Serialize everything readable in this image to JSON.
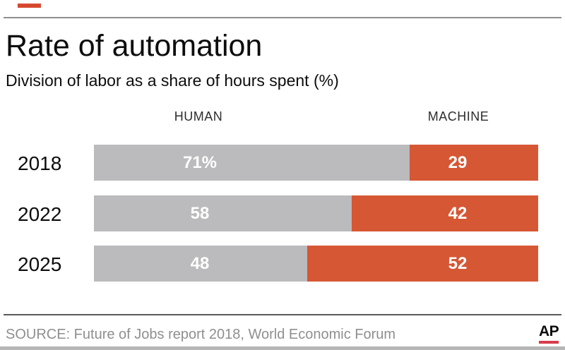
{
  "header": {
    "title": "Rate of automation",
    "subtitle": "Division of labor as a share of hours spent (%)"
  },
  "column_headers": {
    "human": "HUMAN",
    "machine": "MACHINE"
  },
  "chart_data": {
    "type": "bar",
    "subtype": "horizontal-stacked",
    "title": "Rate of automation",
    "subtitle": "Division of labor as a share of hours spent (%)",
    "categories": [
      "2018",
      "2022",
      "2025"
    ],
    "series": [
      {
        "name": "HUMAN",
        "color": "#bbbabc",
        "values": [
          71,
          58,
          48
        ],
        "labels": [
          "71%",
          "58",
          "48"
        ]
      },
      {
        "name": "MACHINE",
        "color": "#d65734",
        "values": [
          29,
          42,
          52
        ],
        "labels": [
          "29",
          "42",
          "52"
        ]
      }
    ],
    "xlim": [
      0,
      100
    ],
    "value_unit": "%",
    "grid": false,
    "legend_position": "top-as-column-headers",
    "label_text_color": "#ffffff"
  },
  "footer": {
    "source": "SOURCE: Future of Jobs report 2018, World Economic Forum",
    "logo_text": "AP"
  },
  "colors": {
    "human_gray": "#bbbabc",
    "machine_red": "#d65734",
    "accent_dash_red": "#d5492e",
    "ap_logo_red": "#d93a4c",
    "rule_gray": "#8f8f8f",
    "source_text_gray": "#8f8f8f",
    "bottom_strip_gray": "#b6b6b6"
  }
}
